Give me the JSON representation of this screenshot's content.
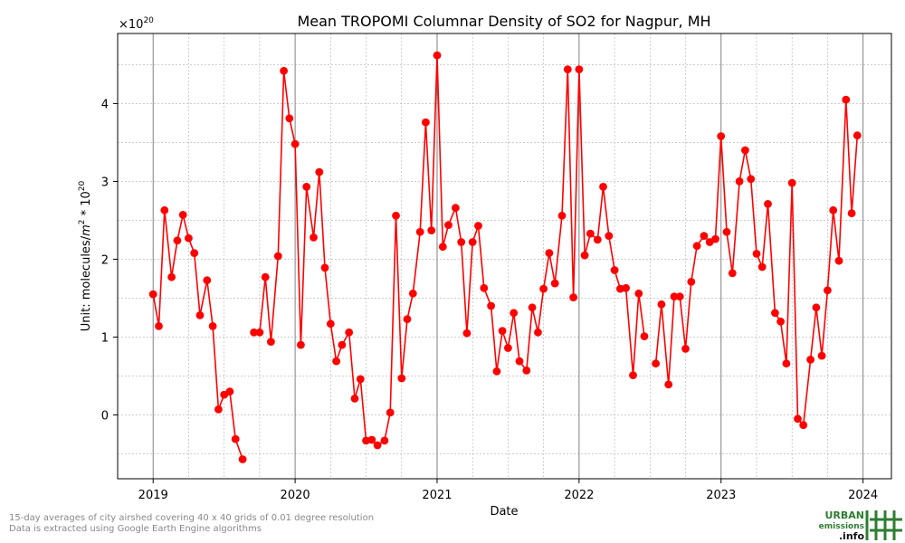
{
  "chart_data": {
    "type": "line",
    "title": "Mean TROPOMI Columnar Density of SO2 for Nagpur, MH",
    "xlabel": "Date",
    "ylabel_prefix": "Unit: molecules/",
    "ylabel_unit": "m",
    "ylabel_unit_power": "2",
    "ylabel_mid": " * 10",
    "ylabel_power": "20",
    "offset_base": "×10",
    "offset_power": "20",
    "xlim": [
      2018.75,
      2024.2
    ],
    "ylim": [
      -0.82,
      4.9
    ],
    "x_ticks": [
      2019,
      2020,
      2021,
      2022,
      2023,
      2024
    ],
    "x_tick_labels": [
      "2019",
      "2020",
      "2021",
      "2022",
      "2023",
      "2024"
    ],
    "y_ticks": [
      0,
      1,
      2,
      3,
      4
    ],
    "y_tick_labels": [
      "0",
      "1",
      "2",
      "3",
      "4"
    ],
    "series": [
      {
        "name": "SO2 columnar density",
        "color": "#ff0000",
        "segments": [
          [
            [
              2019.0,
              1.55
            ],
            [
              2019.04,
              1.14
            ],
            [
              2019.08,
              2.63
            ],
            [
              2019.13,
              1.77
            ],
            [
              2019.17,
              2.24
            ],
            [
              2019.21,
              2.57
            ],
            [
              2019.25,
              2.27
            ],
            [
              2019.29,
              2.08
            ],
            [
              2019.33,
              1.28
            ],
            [
              2019.38,
              1.73
            ],
            [
              2019.42,
              1.14
            ],
            [
              2019.46,
              0.07
            ],
            [
              2019.5,
              0.26
            ],
            [
              2019.54,
              0.3
            ],
            [
              2019.58,
              -0.31
            ],
            [
              2019.63,
              -0.57
            ]
          ],
          [
            [
              2019.71,
              1.06
            ],
            [
              2019.75,
              1.06
            ],
            [
              2019.79,
              1.77
            ],
            [
              2019.83,
              0.94
            ],
            [
              2019.88,
              2.04
            ],
            [
              2019.92,
              4.42
            ],
            [
              2019.96,
              3.81
            ],
            [
              2020.0,
              3.48
            ],
            [
              2020.04,
              0.9
            ],
            [
              2020.08,
              2.93
            ],
            [
              2020.13,
              2.28
            ],
            [
              2020.17,
              3.12
            ],
            [
              2020.21,
              1.89
            ],
            [
              2020.25,
              1.17
            ],
            [
              2020.29,
              0.69
            ],
            [
              2020.33,
              0.9
            ],
            [
              2020.38,
              1.06
            ],
            [
              2020.42,
              0.21
            ],
            [
              2020.46,
              0.46
            ],
            [
              2020.5,
              -0.33
            ],
            [
              2020.54,
              -0.32
            ],
            [
              2020.58,
              -0.39
            ],
            [
              2020.63,
              -0.33
            ],
            [
              2020.67,
              0.03
            ],
            [
              2020.71,
              2.56
            ],
            [
              2020.75,
              0.47
            ],
            [
              2020.79,
              1.23
            ],
            [
              2020.83,
              1.56
            ],
            [
              2020.88,
              2.35
            ],
            [
              2020.92,
              3.76
            ],
            [
              2020.96,
              2.37
            ],
            [
              2021.0,
              4.62
            ],
            [
              2021.04,
              2.16
            ],
            [
              2021.08,
              2.44
            ],
            [
              2021.13,
              2.66
            ],
            [
              2021.17,
              2.22
            ],
            [
              2021.21,
              1.05
            ],
            [
              2021.25,
              2.22
            ],
            [
              2021.29,
              2.43
            ],
            [
              2021.33,
              1.63
            ],
            [
              2021.38,
              1.4
            ],
            [
              2021.42,
              0.56
            ],
            [
              2021.46,
              1.08
            ],
            [
              2021.5,
              0.86
            ],
            [
              2021.54,
              1.31
            ],
            [
              2021.58,
              0.69
            ],
            [
              2021.63,
              0.57
            ],
            [
              2021.67,
              1.38
            ],
            [
              2021.71,
              1.06
            ],
            [
              2021.75,
              1.62
            ],
            [
              2021.79,
              2.08
            ],
            [
              2021.83,
              1.69
            ],
            [
              2021.88,
              2.56
            ],
            [
              2021.92,
              4.44
            ],
            [
              2021.96,
              1.51
            ],
            [
              2022.0,
              4.44
            ],
            [
              2022.04,
              2.05
            ],
            [
              2022.08,
              2.33
            ],
            [
              2022.13,
              2.25
            ],
            [
              2022.17,
              2.93
            ],
            [
              2022.21,
              2.3
            ],
            [
              2022.25,
              1.86
            ],
            [
              2022.29,
              1.62
            ],
            [
              2022.33,
              1.63
            ],
            [
              2022.38,
              0.51
            ],
            [
              2022.42,
              1.56
            ],
            [
              2022.46,
              1.01
            ]
          ],
          [
            [
              2022.54,
              0.66
            ],
            [
              2022.58,
              1.42
            ],
            [
              2022.63,
              0.39
            ],
            [
              2022.67,
              1.52
            ],
            [
              2022.71,
              1.52
            ],
            [
              2022.75,
              0.85
            ],
            [
              2022.79,
              1.71
            ],
            [
              2022.83,
              2.17
            ],
            [
              2022.88,
              2.3
            ],
            [
              2022.92,
              2.22
            ],
            [
              2022.96,
              2.26
            ],
            [
              2023.0,
              3.58
            ],
            [
              2023.04,
              2.35
            ],
            [
              2023.08,
              1.82
            ],
            [
              2023.13,
              3.0
            ],
            [
              2023.17,
              3.4
            ],
            [
              2023.21,
              3.03
            ],
            [
              2023.25,
              2.07
            ],
            [
              2023.29,
              1.9
            ],
            [
              2023.33,
              2.71
            ],
            [
              2023.38,
              1.31
            ],
            [
              2023.42,
              1.2
            ],
            [
              2023.46,
              0.66
            ],
            [
              2023.5,
              2.98
            ],
            [
              2023.54,
              -0.05
            ],
            [
              2023.58,
              -0.13
            ],
            [
              2023.63,
              0.71
            ],
            [
              2023.67,
              1.38
            ],
            [
              2023.71,
              0.76
            ],
            [
              2023.75,
              1.6
            ],
            [
              2023.79,
              2.63
            ],
            [
              2023.83,
              1.98
            ],
            [
              2023.88,
              4.05
            ],
            [
              2023.92,
              2.59
            ],
            [
              2023.96,
              3.59
            ]
          ]
        ]
      }
    ],
    "grid": true,
    "legend": "none"
  },
  "footnotes": {
    "line1": "15-day averages of city airshed covering 40 x 40 grids of 0.01 degree resolution",
    "line2": "Data is extracted using Google Earth Engine algorithms"
  },
  "logo": {
    "line1": "URBAN",
    "line2": "emissions",
    "line3": ".info",
    "color": "#2e7d32"
  }
}
